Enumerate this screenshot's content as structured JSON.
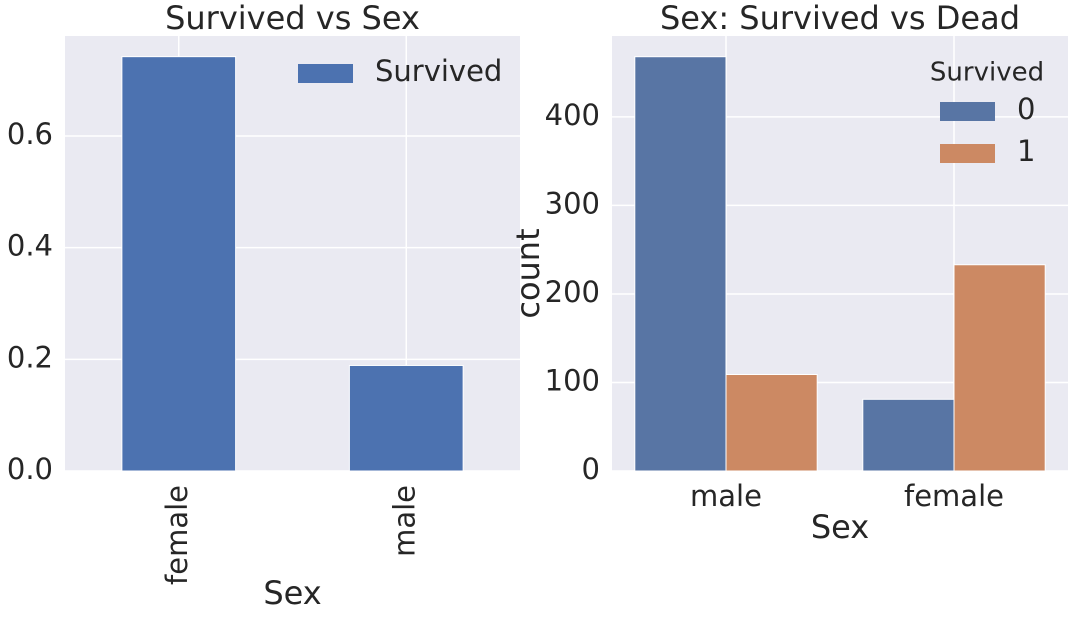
{
  "chart_data": [
    {
      "type": "bar",
      "title": "Survived vs Sex",
      "xlabel": "Sex",
      "categories": [
        "female",
        "male"
      ],
      "series": [
        {
          "name": "Survived",
          "color": "#4c72b0",
          "values": [
            0.742,
            0.189
          ]
        }
      ],
      "ylim": [
        0,
        0.779
      ],
      "yticks": [
        {
          "value": 0,
          "label": "0.0"
        },
        0.2,
        0.4,
        0.6
      ],
      "grid": true,
      "legend": "upper-right",
      "xtick_rotation": 90
    },
    {
      "type": "bar",
      "title": "Sex: Survived vs Dead",
      "xlabel": "Sex",
      "ylabel": "count",
      "categories": [
        "male",
        "female"
      ],
      "legend_title": "Survived",
      "series": [
        {
          "name": "0",
          "color": "#5875a4",
          "values": [
            468,
            81
          ]
        },
        {
          "name": "1",
          "color": "#cc8963",
          "values": [
            109,
            233
          ]
        }
      ],
      "ylim": [
        0,
        491.4
      ],
      "yticks": [
        0,
        100,
        200,
        300,
        400
      ],
      "grid": true,
      "legend": "upper-right",
      "xtick_rotation": 0
    }
  ]
}
